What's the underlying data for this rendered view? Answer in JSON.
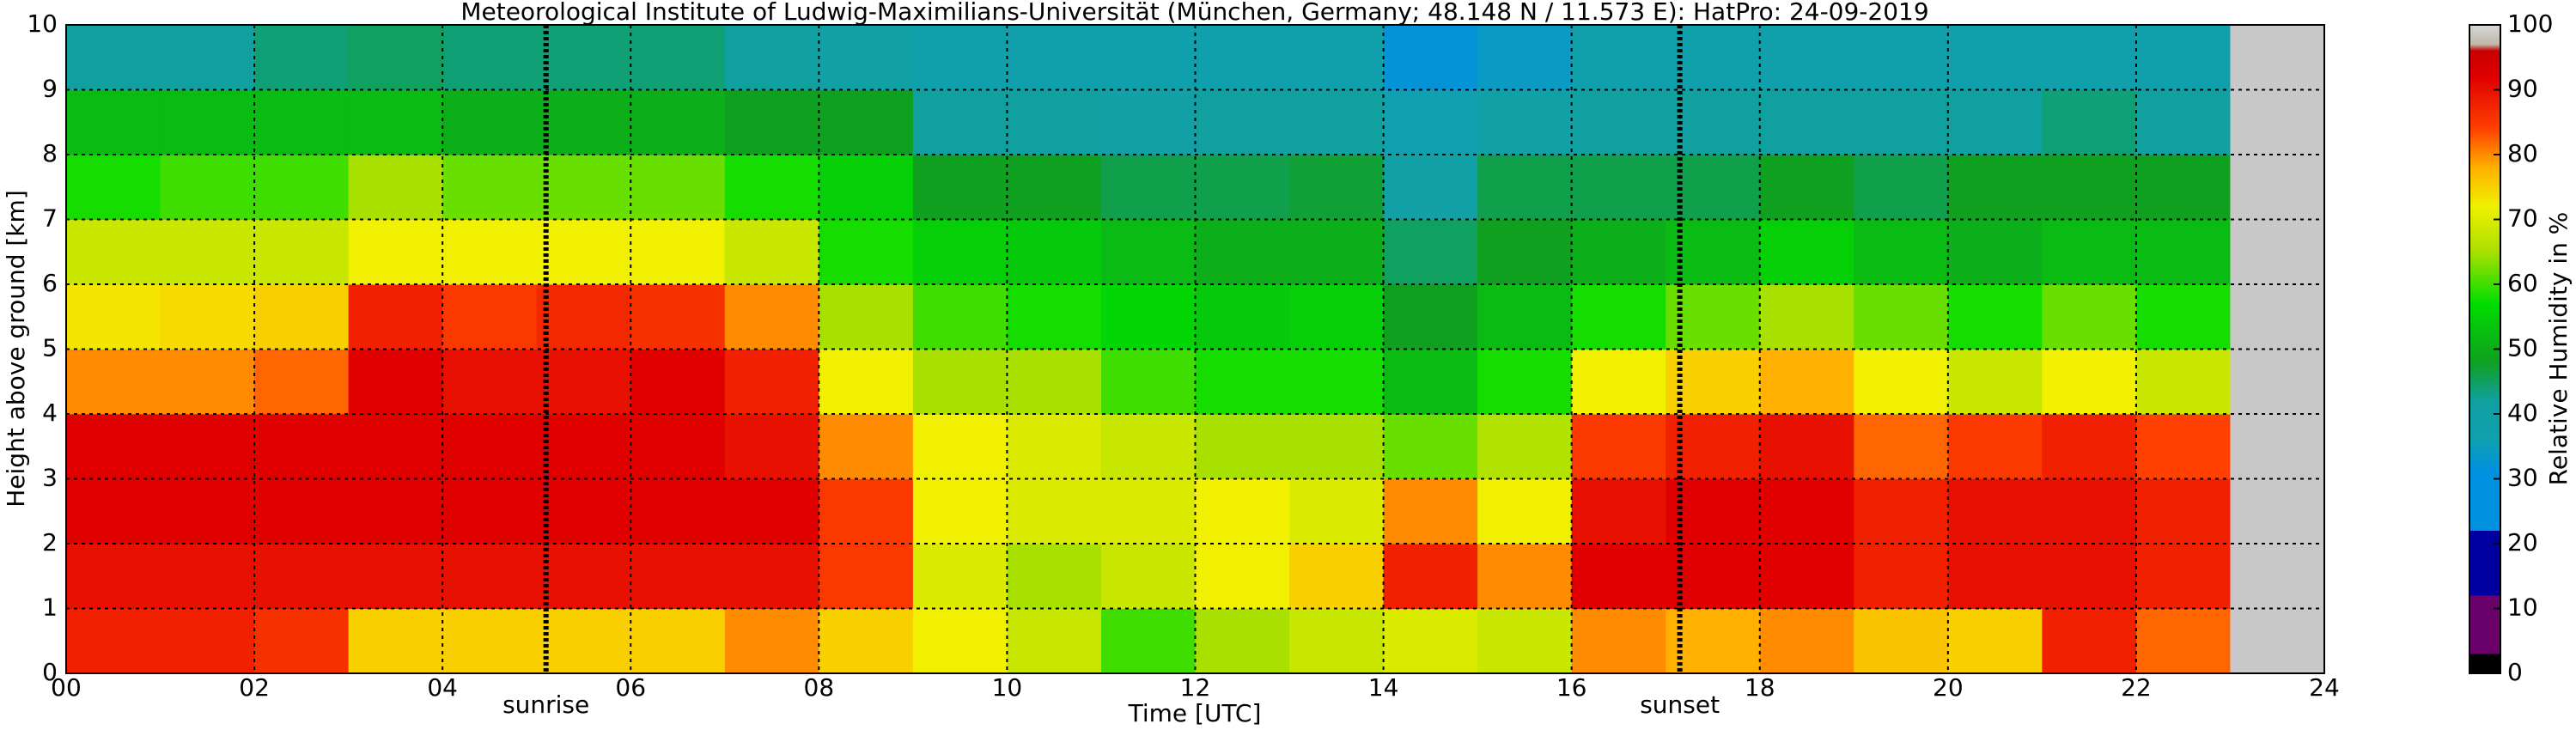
{
  "chart_data": {
    "type": "heatmap",
    "title": "Meteorological Institute of Ludwig-Maximilians-Universität (München, Germany; 48.148 N / 11.573 E):    HatPro: 24-09-2019",
    "x_label": "Time [UTC]",
    "y_label": "Height above ground [km]",
    "colorbar_label": "Relative Humidity in %",
    "x": [
      0,
      1,
      2,
      3,
      4,
      5,
      6,
      7,
      8,
      9,
      10,
      11,
      12,
      13,
      14,
      15,
      16,
      17,
      18,
      19,
      20,
      21,
      22,
      23
    ],
    "y": [
      0,
      1,
      2,
      3,
      4,
      5,
      6,
      7,
      8,
      9
    ],
    "z": [
      [
        88,
        90,
        92,
        92,
        80,
        73,
        68,
        58,
        52,
        42
      ],
      [
        88,
        90,
        92,
        92,
        80,
        74,
        68,
        60,
        52,
        42
      ],
      [
        86,
        90,
        92,
        92,
        82,
        75,
        68,
        60,
        52,
        44
      ],
      [
        75,
        90,
        92,
        92,
        92,
        88,
        72,
        65,
        52,
        45
      ],
      [
        75,
        90,
        92,
        92,
        90,
        85,
        72,
        62,
        50,
        44
      ],
      [
        75,
        90,
        92,
        92,
        90,
        87,
        72,
        62,
        50,
        44
      ],
      [
        75,
        90,
        92,
        92,
        92,
        86,
        72,
        62,
        50,
        44
      ],
      [
        80,
        90,
        92,
        90,
        88,
        80,
        68,
        58,
        48,
        42
      ],
      [
        75,
        85,
        85,
        80,
        72,
        65,
        58,
        55,
        48,
        40
      ],
      [
        72,
        70,
        72,
        72,
        65,
        60,
        55,
        48,
        42,
        38
      ],
      [
        68,
        65,
        70,
        70,
        65,
        58,
        54,
        48,
        42,
        38
      ],
      [
        60,
        68,
        70,
        68,
        60,
        56,
        52,
        46,
        40,
        38
      ],
      [
        65,
        72,
        72,
        65,
        58,
        54,
        50,
        46,
        42,
        38
      ],
      [
        68,
        75,
        70,
        65,
        58,
        55,
        50,
        47,
        42,
        38
      ],
      [
        70,
        88,
        80,
        62,
        52,
        48,
        45,
        40,
        36,
        32
      ],
      [
        68,
        80,
        72,
        66,
        58,
        52,
        48,
        46,
        40,
        34
      ],
      [
        80,
        92,
        90,
        85,
        72,
        58,
        50,
        46,
        42,
        38
      ],
      [
        78,
        92,
        92,
        88,
        75,
        62,
        52,
        46,
        42,
        38
      ],
      [
        80,
        92,
        92,
        90,
        78,
        65,
        55,
        48,
        42,
        38
      ],
      [
        76,
        88,
        88,
        82,
        72,
        62,
        52,
        46,
        42,
        38
      ],
      [
        75,
        90,
        90,
        85,
        68,
        58,
        50,
        48,
        42,
        38
      ],
      [
        88,
        90,
        90,
        88,
        72,
        62,
        52,
        48,
        44,
        38
      ],
      [
        82,
        88,
        88,
        84,
        68,
        58,
        52,
        48,
        42,
        38
      ],
      [
        null,
        null,
        null,
        null,
        null,
        null,
        null,
        null,
        null,
        null
      ]
    ],
    "xlim": [
      0,
      24
    ],
    "ylim": [
      0,
      10
    ],
    "xticks": [
      {
        "value": 0,
        "label": "00"
      },
      {
        "value": 2,
        "label": "02"
      },
      {
        "value": 4,
        "label": "04"
      },
      {
        "value": 6,
        "label": "06"
      },
      {
        "value": 8,
        "label": "08"
      },
      10,
      12,
      14,
      16,
      18,
      20,
      22,
      24
    ],
    "yticks": [
      0,
      1,
      2,
      3,
      4,
      5,
      6,
      7,
      8,
      9,
      10
    ],
    "clim": [
      0,
      100
    ],
    "cticks": [
      0,
      10,
      20,
      30,
      40,
      50,
      60,
      70,
      80,
      90,
      100
    ],
    "grid": true,
    "missing_color": "#c8c8c8",
    "colorscale": [
      [
        0,
        "#000000"
      ],
      [
        3,
        "#000000"
      ],
      [
        3,
        "#6a006a"
      ],
      [
        12,
        "#6a006a"
      ],
      [
        12,
        "#0000a0"
      ],
      [
        22,
        "#0000a0"
      ],
      [
        22,
        "#0090e0"
      ],
      [
        31,
        "#0090e0"
      ],
      [
        36,
        "#10a0b0"
      ],
      [
        42,
        "#10a0a0"
      ],
      [
        48,
        "#10a020"
      ],
      [
        57,
        "#00dd00"
      ],
      [
        65,
        "#a8e000"
      ],
      [
        72,
        "#f0f000"
      ],
      [
        78,
        "#ffb000"
      ],
      [
        84,
        "#ff4000"
      ],
      [
        92,
        "#e00000"
      ],
      [
        96,
        "#c80000"
      ],
      [
        97,
        "#c0b8a8"
      ],
      [
        100,
        "#d8d8d8"
      ]
    ],
    "annotations": [
      {
        "text": "sunrise",
        "x": 5.1
      },
      {
        "text": "sunset",
        "x": 17.15
      }
    ]
  }
}
